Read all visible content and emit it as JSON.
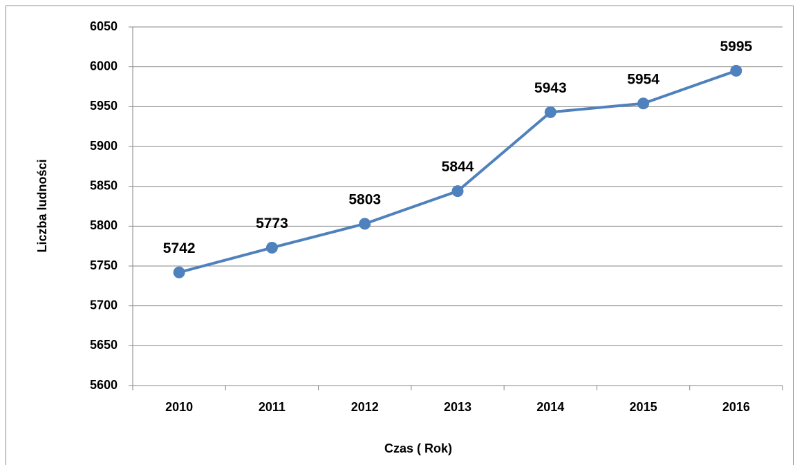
{
  "chart_data": {
    "type": "line",
    "x_label": "Czas ( Rok)",
    "y_label": "Liczba ludności",
    "categories": [
      "2010",
      "2011",
      "2012",
      "2013",
      "2014",
      "2015",
      "2016"
    ],
    "series": [
      {
        "name": "Liczba ludności",
        "color": "#4f81bd",
        "values": [
          5742,
          5773,
          5803,
          5844,
          5943,
          5954,
          5995
        ]
      }
    ],
    "ylim": [
      5600,
      6050
    ],
    "yticks": [
      5600,
      5650,
      5700,
      5750,
      5800,
      5850,
      5900,
      5950,
      6000,
      6050
    ],
    "grid": true,
    "data_labels": true
  }
}
